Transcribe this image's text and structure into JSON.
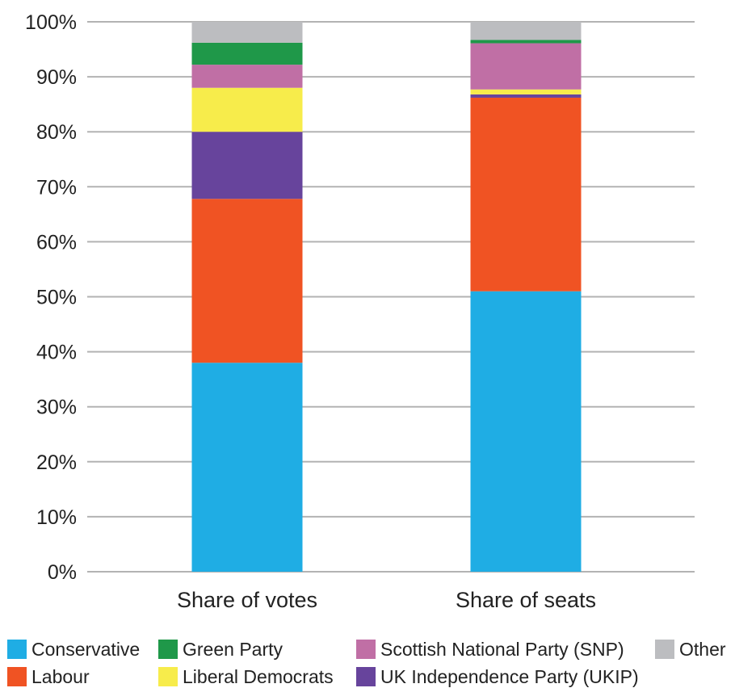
{
  "chart_data": {
    "type": "bar",
    "stacked": true,
    "title": "",
    "xlabel": "",
    "ylabel": "",
    "ylim": [
      0,
      100
    ],
    "yticks": [
      "0%",
      "10%",
      "20%",
      "30%",
      "40%",
      "50%",
      "60%",
      "70%",
      "80%",
      "90%",
      "100%"
    ],
    "grid": true,
    "legend_position": "bottom",
    "categories": [
      "Share of votes",
      "Share of seats"
    ],
    "series": [
      {
        "name": "Conservative",
        "color": "#1fade4",
        "values": [
          38,
          51
        ]
      },
      {
        "name": "Labour",
        "color": "#f05323",
        "values": [
          29.8,
          35.2
        ]
      },
      {
        "name": "UK Independence Party (UKIP)",
        "color": "#67449c",
        "values": [
          12.2,
          0.6
        ]
      },
      {
        "name": "Liberal Democrats",
        "color": "#f7ec4b",
        "values": [
          8,
          0.9
        ]
      },
      {
        "name": "Scottish National Party (SNP)",
        "color": "#c06fa5",
        "values": [
          4.2,
          8.4
        ]
      },
      {
        "name": "Green Party",
        "color": "#1f9849",
        "values": [
          4,
          0.6
        ]
      },
      {
        "name": "Other",
        "color": "#bcbdc0",
        "values": [
          3.8,
          3.3
        ]
      }
    ],
    "legend_order": [
      "Conservative",
      "Green Party",
      "Scottish National Party (SNP)",
      "Other",
      "Labour",
      "Liberal Democrats",
      "UK Independence Party (UKIP)"
    ]
  }
}
